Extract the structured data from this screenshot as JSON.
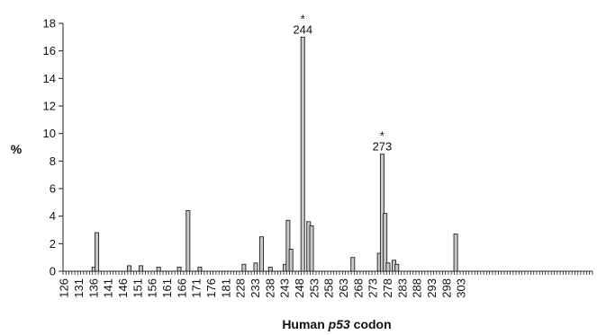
{
  "chart_data": {
    "type": "bar",
    "title": "",
    "xlabel": {
      "prefix": "Human ",
      "italic": "p53",
      "suffix": " codon"
    },
    "ylabel": "%",
    "ylim": [
      0,
      18
    ],
    "yticks": [
      0,
      2,
      4,
      6,
      8,
      10,
      12,
      14,
      16,
      18
    ],
    "xrange": [
      126,
      305
    ],
    "xtick_labels": [
      126,
      131,
      136,
      141,
      146,
      151,
      156,
      161,
      166,
      171,
      176,
      181,
      228,
      233,
      238,
      243,
      248,
      253,
      258,
      263,
      268,
      273,
      278,
      283,
      288,
      293,
      298,
      303
    ],
    "grid": false,
    "legend": "none",
    "bar_color": "#c8c8c8",
    "edge_color": "#222222",
    "bars": [
      {
        "x": 136,
        "value": 0.3
      },
      {
        "x": 137,
        "value": 2.8
      },
      {
        "x": 148,
        "value": 0.4
      },
      {
        "x": 152,
        "value": 0.4
      },
      {
        "x": 158,
        "value": 0.3
      },
      {
        "x": 165,
        "value": 0.3
      },
      {
        "x": 168,
        "value": 4.4
      },
      {
        "x": 172,
        "value": 0.3
      },
      {
        "x": 187,
        "value": 0.5
      },
      {
        "x": 191,
        "value": 0.6
      },
      {
        "x": 193,
        "value": 2.5
      },
      {
        "x": 196,
        "value": 0.3
      },
      {
        "x": 201,
        "value": 0.5
      },
      {
        "x": 202,
        "value": 3.7
      },
      {
        "x": 203,
        "value": 1.6
      },
      {
        "x": 207,
        "value": 17.0
      },
      {
        "x": 209,
        "value": 3.6
      },
      {
        "x": 210,
        "value": 3.3
      },
      {
        "x": 224,
        "value": 1.0
      },
      {
        "x": 233,
        "value": 1.3
      },
      {
        "x": 234,
        "value": 8.5
      },
      {
        "x": 235,
        "value": 4.2
      },
      {
        "x": 236,
        "value": 0.6
      },
      {
        "x": 238,
        "value": 0.8
      },
      {
        "x": 239,
        "value": 0.5
      },
      {
        "x": 259,
        "value": 2.7
      }
    ],
    "annotations": [
      {
        "x": 207,
        "value": 17.0,
        "star": "*",
        "label": "244"
      },
      {
        "x": 234,
        "value": 8.5,
        "star": "*",
        "label": "273"
      }
    ]
  }
}
